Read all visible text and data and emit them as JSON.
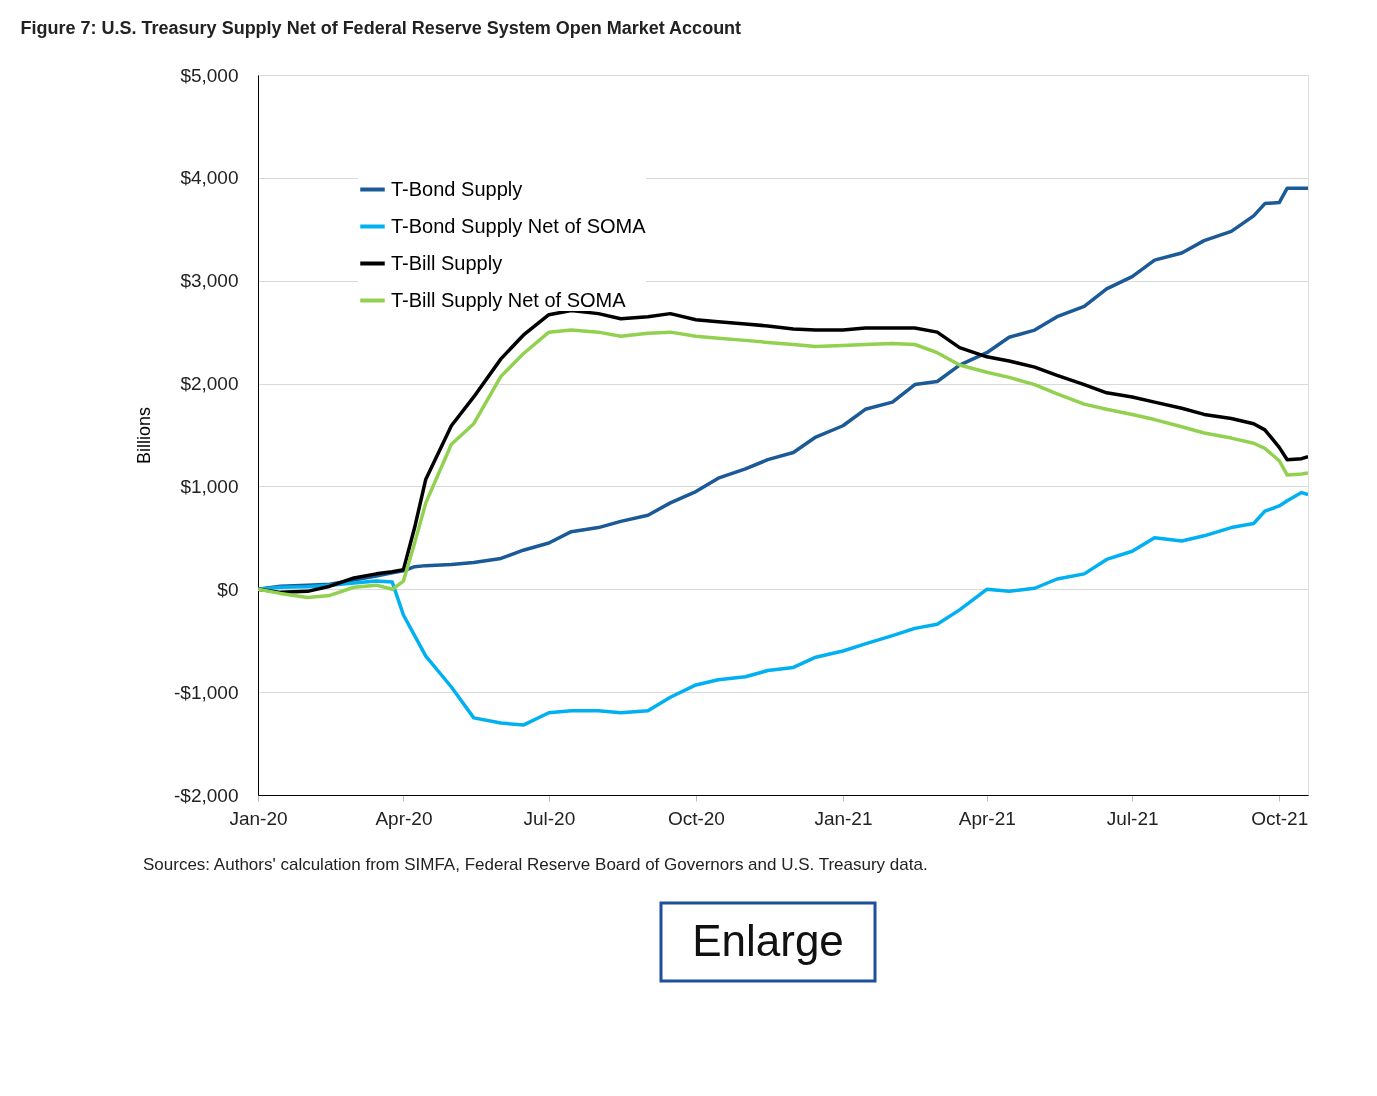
{
  "chart_data": {
    "type": "line",
    "title": "Figure 7: U.S. Treasury Supply Net of Federal Reserve System Open Market Account",
    "ylabel": "Billions",
    "x": [
      "2020-01-01",
      "2020-01-15",
      "2020-02-01",
      "2020-02-15",
      "2020-03-01",
      "2020-03-15",
      "2020-03-25",
      "2020-04-01",
      "2020-04-08",
      "2020-04-15",
      "2020-05-01",
      "2020-05-15",
      "2020-06-01",
      "2020-06-15",
      "2020-07-01",
      "2020-07-15",
      "2020-08-01",
      "2020-08-15",
      "2020-09-01",
      "2020-09-15",
      "2020-10-01",
      "2020-10-15",
      "2020-11-01",
      "2020-11-15",
      "2020-12-01",
      "2020-12-15",
      "2021-01-01",
      "2021-01-15",
      "2021-02-01",
      "2021-02-15",
      "2021-03-01",
      "2021-03-15",
      "2021-04-01",
      "2021-04-15",
      "2021-05-01",
      "2021-05-15",
      "2021-06-01",
      "2021-06-15",
      "2021-07-01",
      "2021-07-15",
      "2021-08-01",
      "2021-08-15",
      "2021-09-01",
      "2021-09-15",
      "2021-09-22",
      "2021-10-01",
      "2021-10-06",
      "2021-10-15",
      "2021-10-19"
    ],
    "series": [
      {
        "name": "T-Bond Supply",
        "color": "#1b5a96",
        "values": [
          0,
          30,
          40,
          50,
          90,
          130,
          160,
          180,
          220,
          230,
          240,
          260,
          300,
          380,
          450,
          560,
          600,
          660,
          720,
          840,
          950,
          1080,
          1170,
          1260,
          1330,
          1480,
          1590,
          1750,
          1820,
          1990,
          2020,
          2180,
          2300,
          2450,
          2520,
          2650,
          2750,
          2920,
          3040,
          3200,
          3270,
          3390,
          3480,
          3630,
          3750,
          3760,
          3900,
          3900,
          3900
        ]
      },
      {
        "name": "T-Bond Supply Net of SOMA",
        "color": "#00b0f0",
        "values": [
          0,
          20,
          25,
          40,
          60,
          80,
          70,
          -250,
          -450,
          -650,
          -950,
          -1250,
          -1300,
          -1320,
          -1200,
          -1180,
          -1180,
          -1200,
          -1180,
          -1050,
          -930,
          -880,
          -850,
          -790,
          -760,
          -660,
          -600,
          -530,
          -450,
          -380,
          -340,
          -200,
          0,
          -20,
          10,
          100,
          150,
          290,
          370,
          500,
          470,
          520,
          600,
          640,
          760,
          810,
          860,
          940,
          920
        ]
      },
      {
        "name": "T-Bill Supply",
        "color": "#000000",
        "values": [
          0,
          -30,
          -20,
          30,
          110,
          150,
          170,
          190,
          600,
          1070,
          1590,
          1870,
          2240,
          2470,
          2670,
          2710,
          2680,
          2630,
          2650,
          2680,
          2620,
          2600,
          2580,
          2560,
          2530,
          2520,
          2520,
          2540,
          2540,
          2540,
          2500,
          2350,
          2260,
          2220,
          2160,
          2080,
          1990,
          1910,
          1870,
          1820,
          1760,
          1700,
          1660,
          1610,
          1550,
          1380,
          1260,
          1270,
          1290
        ]
      },
      {
        "name": "T-Bill Supply Net of SOMA",
        "color": "#92d050",
        "values": [
          0,
          -40,
          -80,
          -60,
          20,
          40,
          0,
          80,
          450,
          840,
          1410,
          1610,
          2070,
          2290,
          2500,
          2520,
          2500,
          2460,
          2490,
          2500,
          2460,
          2440,
          2420,
          2400,
          2380,
          2360,
          2370,
          2380,
          2390,
          2380,
          2300,
          2180,
          2110,
          2060,
          1990,
          1900,
          1800,
          1750,
          1700,
          1650,
          1580,
          1520,
          1470,
          1420,
          1370,
          1250,
          1110,
          1120,
          1130
        ]
      }
    ],
    "xlim": [
      "2020-01-01",
      "2021-10-19"
    ],
    "xticks": [
      {
        "value": "2020-01-01",
        "label": "Jan-20"
      },
      {
        "value": "2020-04-01",
        "label": "Apr-20"
      },
      {
        "value": "2020-07-01",
        "label": "Jul-20"
      },
      {
        "value": "2020-10-01",
        "label": "Oct-20"
      },
      {
        "value": "2021-01-01",
        "label": "Jan-21"
      },
      {
        "value": "2021-04-01",
        "label": "Apr-21"
      },
      {
        "value": "2021-07-01",
        "label": "Jul-21"
      },
      {
        "value": "2021-10-01",
        "label": "Oct-21"
      }
    ],
    "ylim": [
      -2000,
      5000
    ],
    "yticks": [
      {
        "value": -2000,
        "label": "-$2,000"
      },
      {
        "value": -1000,
        "label": "-$1,000"
      },
      {
        "value": 0,
        "label": "$0"
      },
      {
        "value": 1000,
        "label": "$1,000"
      },
      {
        "value": 2000,
        "label": "$2,000"
      },
      {
        "value": 3000,
        "label": "$3,000"
      },
      {
        "value": 4000,
        "label": "$4,000"
      },
      {
        "value": 5000,
        "label": "$5,000"
      }
    ],
    "grid": "y",
    "legend": "top left",
    "marker": "none",
    "line_style": "solid",
    "annotations": [
      "Sources: Authors' calculation from SIMFA, Federal Reserve Board of Governors and U.S. Treasury data.",
      "Enlarge"
    ]
  }
}
